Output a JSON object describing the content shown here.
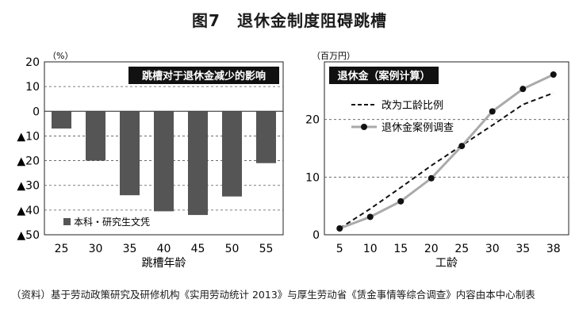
{
  "figure_title": "图7　退休金制度阻碍跳槽",
  "source_note": "（资料）基于劳动政策研究及研修机构《实用劳动统计 2013》与厚生劳动省《赁金事情等综合调查》内容由本中心制表",
  "chart_data": [
    {
      "type": "bar",
      "title": "跳槽对于退休金减少的影响",
      "xlabel": "跳槽年龄",
      "ylabel": "（%）",
      "categories": [
        "25",
        "30",
        "35",
        "40",
        "45",
        "50",
        "55"
      ],
      "ylim": [
        -50,
        20
      ],
      "yticks": [
        20,
        10,
        0,
        -10,
        -20,
        -30,
        -40,
        -50
      ],
      "ytick_labels": [
        "20",
        "10",
        "0",
        "▲10",
        "▲20",
        "▲30",
        "▲40",
        "▲50"
      ],
      "series": [
        {
          "name": "本科・研究生文凭",
          "values": [
            -7,
            -20,
            -34,
            -40.5,
            -42,
            -34.5,
            -21
          ],
          "color": "#555555"
        }
      ],
      "grid": "dashed-horizontal",
      "legend": "bottom-left"
    },
    {
      "type": "line",
      "title": "退休金（案例计算）",
      "xlabel": "工龄",
      "ylabel": "（百万円）",
      "categories": [
        "5",
        "10",
        "15",
        "20",
        "25",
        "30",
        "35",
        "38"
      ],
      "ylim": [
        0,
        30
      ],
      "yticks": [
        0,
        10,
        20
      ],
      "series": [
        {
          "name": "改为工龄比例",
          "values": [
            1.1,
            4.5,
            8.2,
            12.0,
            15.5,
            19.0,
            22.6,
            24.6
          ],
          "style": "dashed",
          "color": "#111111"
        },
        {
          "name": "退休金案例调查",
          "values": [
            1.1,
            3.1,
            5.8,
            9.8,
            15.4,
            21.4,
            25.3,
            27.8
          ],
          "style": "solid-markers",
          "color": "#aaaaaa"
        }
      ],
      "grid": "dashed-horizontal",
      "legend": "top-left"
    }
  ]
}
